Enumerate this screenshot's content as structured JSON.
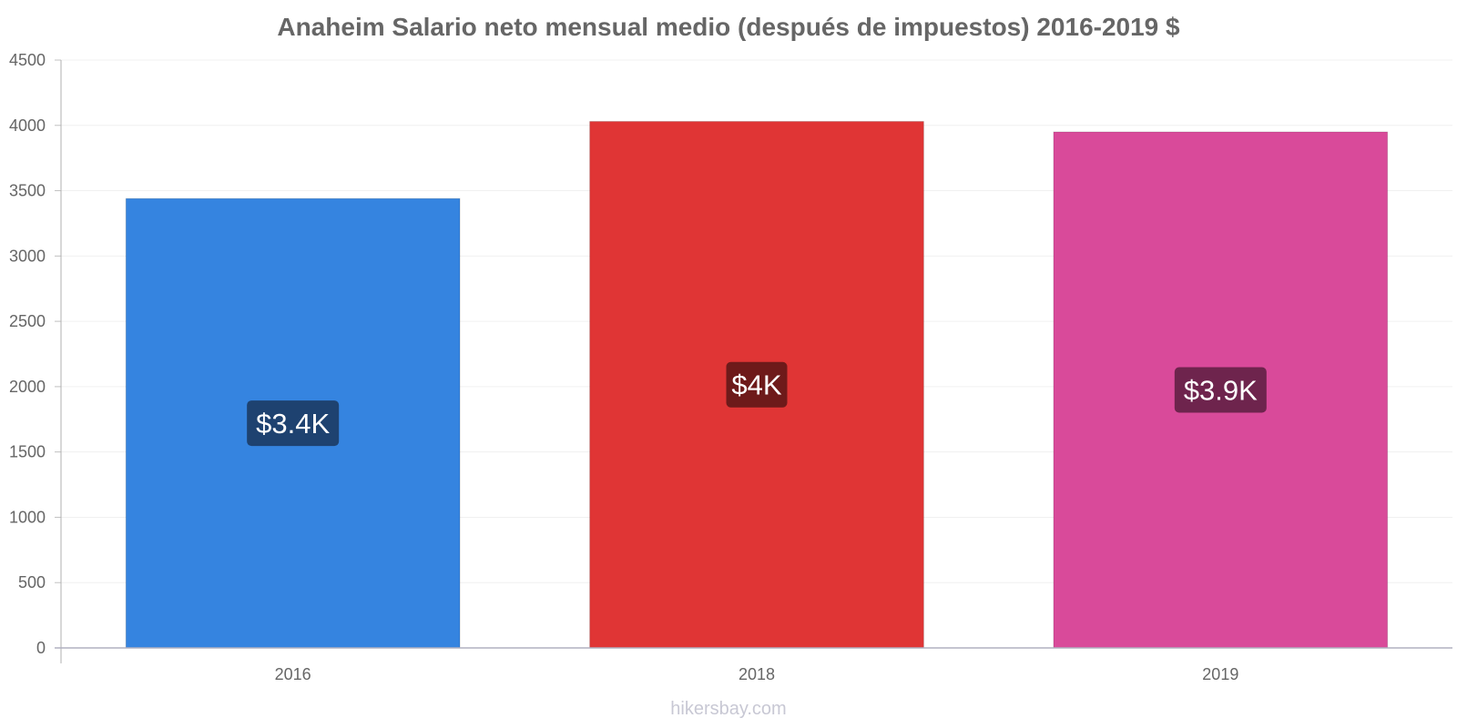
{
  "chart_data": {
    "type": "bar",
    "title": "Anaheim Salario neto mensual medio (después de impuestos) 2016-2019 $",
    "categories": [
      "2016",
      "2018",
      "2019"
    ],
    "values": [
      3440,
      4030,
      3950
    ],
    "value_labels": [
      "$3.4K",
      "$4K",
      "$3.9K"
    ],
    "bar_colors": [
      "#3584e0",
      "#e03535",
      "#d94a9a"
    ],
    "label_bg_colors": [
      "#1e4270",
      "#6e1a1a",
      "#6e244d"
    ],
    "ylim": [
      0,
      4500
    ],
    "yticks": [
      0,
      500,
      1000,
      1500,
      2000,
      2500,
      3000,
      3500,
      4000,
      4500
    ],
    "xlabel": "",
    "ylabel": "",
    "grid": true,
    "legend": "none"
  },
  "watermark": "hikersbay.com"
}
